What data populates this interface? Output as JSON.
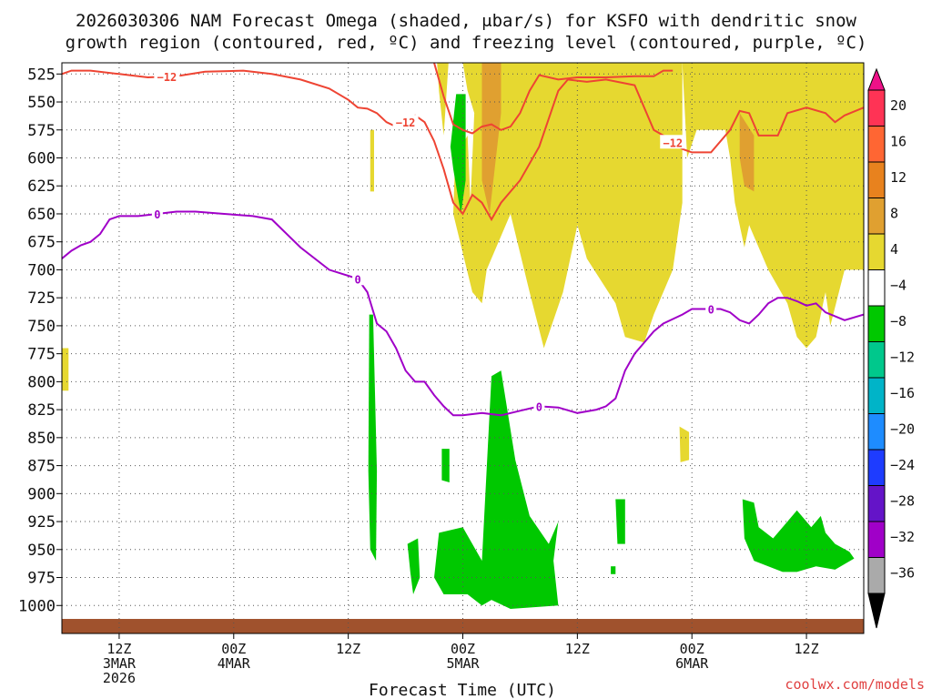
{
  "chart_data": {
    "type": "heatmap",
    "title_lines": [
      "2026030306 NAM Forecast Omega (shaded, μbar/s) for KSFO with dendritic snow",
      "growth region (contoured, red, ºC) and freezing level (contoured, purple, ºC)"
    ],
    "xlabel": "Forecast Time (UTC)",
    "credit": "coolwx.com/models",
    "x_range_hours": [
      0,
      84
    ],
    "x_ticks": [
      {
        "hour": 6,
        "lines": [
          "12Z",
          "3MAR",
          "2026"
        ]
      },
      {
        "hour": 18,
        "lines": [
          "00Z",
          "4MAR"
        ]
      },
      {
        "hour": 30,
        "lines": [
          "12Z"
        ]
      },
      {
        "hour": 42,
        "lines": [
          "00Z",
          "5MAR"
        ]
      },
      {
        "hour": 54,
        "lines": [
          "12Z"
        ]
      },
      {
        "hour": 66,
        "lines": [
          "00Z",
          "6MAR"
        ]
      },
      {
        "hour": 78,
        "lines": [
          "12Z"
        ]
      }
    ],
    "y_axis": "pressure_hPa",
    "y_range": [
      1025,
      515
    ],
    "y_ticks": [
      525,
      550,
      575,
      600,
      625,
      650,
      675,
      700,
      725,
      750,
      775,
      800,
      825,
      850,
      875,
      900,
      925,
      950,
      975,
      1000
    ],
    "colorbar": {
      "labels": [
        "20",
        "16",
        "12",
        "8",
        "4",
        "−4",
        "−8",
        "−12",
        "−16",
        "−20",
        "−24",
        "−28",
        "−32",
        "−36"
      ],
      "colors": [
        "#ff3355",
        "#ff6633",
        "#e8821e",
        "#e0a030",
        "#e6d830",
        "#ffffff",
        "#00c800",
        "#00c88c",
        "#00b4c8",
        "#1e8cff",
        "#1e3cff",
        "#6414c8",
        "#a000c8",
        "#aaaaaa"
      ],
      "top_arrow_color": "#ee1188",
      "bottom_arrow_color": "#000000"
    },
    "omega_regions": [
      {
        "color": "#e6d830",
        "points": [
          [
            39.3,
            515
          ],
          [
            40.5,
            515
          ],
          [
            40.0,
            580
          ],
          [
            39.5,
            540
          ]
        ]
      },
      {
        "color": "#e6d830",
        "points": [
          [
            42.0,
            515
          ],
          [
            65.0,
            515
          ],
          [
            65.0,
            640
          ],
          [
            64.0,
            700
          ],
          [
            62.0,
            740
          ],
          [
            61.0,
            765
          ],
          [
            59.0,
            760
          ],
          [
            58.0,
            730
          ],
          [
            55.0,
            690
          ],
          [
            54.0,
            660
          ],
          [
            52.5,
            720
          ],
          [
            50.5,
            770
          ],
          [
            49.0,
            720
          ],
          [
            47.0,
            650
          ],
          [
            44.5,
            700
          ],
          [
            44.0,
            730
          ],
          [
            43.0,
            720
          ],
          [
            41.0,
            650
          ],
          [
            41.2,
            600
          ],
          [
            42.5,
            580
          ],
          [
            42.8,
            640
          ],
          [
            43.2,
            560
          ],
          [
            42.5,
            540
          ]
        ]
      },
      {
        "color": "#e6d830",
        "points": [
          [
            65.0,
            515
          ],
          [
            84.0,
            515
          ],
          [
            84.0,
            700
          ],
          [
            82.0,
            700
          ],
          [
            80.5,
            750
          ],
          [
            80.0,
            720
          ],
          [
            79.0,
            760
          ],
          [
            78.0,
            770
          ],
          [
            77.0,
            760
          ],
          [
            76.0,
            730
          ],
          [
            74.0,
            700
          ],
          [
            72.0,
            660
          ],
          [
            71.5,
            680
          ],
          [
            70.5,
            640
          ],
          [
            70.0,
            600
          ],
          [
            69.5,
            575
          ],
          [
            66.5,
            575
          ],
          [
            65.5,
            600
          ]
        ]
      },
      {
        "color": "#e6d830",
        "points": [
          [
            -0.2,
            770
          ],
          [
            0.7,
            770
          ],
          [
            0.7,
            808
          ],
          [
            -0.2,
            808
          ]
        ]
      },
      {
        "color": "#e6d830",
        "points": [
          [
            64.7,
            840
          ],
          [
            65.7,
            845
          ],
          [
            65.7,
            870
          ],
          [
            64.8,
            872
          ]
        ]
      },
      {
        "color": "#e6d830",
        "points": [
          [
            32.3,
            575
          ],
          [
            32.7,
            575
          ],
          [
            32.7,
            630
          ],
          [
            32.3,
            630
          ]
        ]
      },
      {
        "color": "#e0a030",
        "points": [
          [
            44.0,
            515
          ],
          [
            46.0,
            515
          ],
          [
            46.0,
            560
          ],
          [
            44.8,
            650
          ],
          [
            44.0,
            620
          ]
        ]
      },
      {
        "color": "#e0a030",
        "points": [
          [
            71.0,
            560
          ],
          [
            72.5,
            580
          ],
          [
            72.5,
            630
          ],
          [
            71.5,
            625
          ],
          [
            71.0,
            600
          ]
        ]
      },
      {
        "color": "#00c800",
        "points": [
          [
            41.3,
            543
          ],
          [
            42.3,
            543
          ],
          [
            42.3,
            620
          ],
          [
            41.8,
            650
          ],
          [
            41.0,
            610
          ],
          [
            40.7,
            590
          ]
        ]
      },
      {
        "color": "#00c800",
        "points": [
          [
            32.2,
            740
          ],
          [
            32.6,
            740
          ],
          [
            33.0,
            880
          ],
          [
            32.9,
            960
          ],
          [
            32.3,
            950
          ],
          [
            32.1,
            880
          ]
        ]
      },
      {
        "color": "#00c800",
        "points": [
          [
            39.8,
            860
          ],
          [
            40.6,
            860
          ],
          [
            40.6,
            890
          ],
          [
            39.8,
            888
          ]
        ]
      },
      {
        "color": "#00c800",
        "points": [
          [
            42.0,
            930
          ],
          [
            44.0,
            960
          ],
          [
            45.0,
            795
          ],
          [
            46.0,
            790
          ],
          [
            47.5,
            870
          ],
          [
            49.0,
            920
          ],
          [
            51.0,
            945
          ],
          [
            52.0,
            925
          ],
          [
            51.5,
            960
          ],
          [
            52.0,
            1000
          ],
          [
            47.0,
            1003
          ],
          [
            45.0,
            995
          ],
          [
            44.0,
            1000
          ],
          [
            42.5,
            990
          ],
          [
            40.0,
            990
          ],
          [
            39.0,
            975
          ],
          [
            39.5,
            935
          ]
        ]
      },
      {
        "color": "#00c800",
        "points": [
          [
            36.2,
            945
          ],
          [
            37.3,
            940
          ],
          [
            37.5,
            975
          ],
          [
            36.8,
            990
          ],
          [
            36.5,
            970
          ]
        ]
      },
      {
        "color": "#00c800",
        "points": [
          [
            58.0,
            905
          ],
          [
            59.0,
            905
          ],
          [
            59.0,
            945
          ],
          [
            58.2,
            945
          ]
        ]
      },
      {
        "color": "#00c800",
        "points": [
          [
            57.5,
            965
          ],
          [
            58.0,
            965
          ],
          [
            58.0,
            972
          ],
          [
            57.5,
            972
          ]
        ]
      },
      {
        "color": "#00c800",
        "points": [
          [
            71.3,
            905
          ],
          [
            72.5,
            908
          ],
          [
            73.0,
            930
          ],
          [
            74.5,
            940
          ],
          [
            76.0,
            925
          ],
          [
            77.0,
            915
          ],
          [
            78.5,
            930
          ],
          [
            79.5,
            920
          ],
          [
            80.0,
            935
          ],
          [
            81.0,
            945
          ],
          [
            82.5,
            952
          ],
          [
            83.0,
            958
          ],
          [
            81.0,
            968
          ],
          [
            79.0,
            965
          ],
          [
            77.0,
            970
          ],
          [
            75.5,
            970
          ],
          [
            74.0,
            965
          ],
          [
            72.5,
            960
          ],
          [
            71.5,
            940
          ]
        ]
      }
    ],
    "dgz_contour": {
      "label": "−12",
      "color": "#ee4433",
      "upper_points": [
        [
          0,
          525
        ],
        [
          1,
          522
        ],
        [
          3,
          522
        ],
        [
          6,
          525
        ],
        [
          9,
          528
        ],
        [
          12,
          527
        ],
        [
          15,
          523
        ],
        [
          19,
          522
        ],
        [
          22,
          525
        ],
        [
          25,
          530
        ],
        [
          28,
          538
        ],
        [
          30,
          548
        ],
        [
          31,
          555
        ],
        [
          32,
          556
        ],
        [
          33,
          560
        ],
        [
          34,
          568
        ],
        [
          35,
          572
        ],
        [
          36,
          568
        ],
        [
          37,
          562
        ],
        [
          38,
          568
        ],
        [
          39,
          585
        ],
        [
          40,
          610
        ],
        [
          41,
          640
        ],
        [
          42,
          650
        ],
        [
          43,
          633
        ],
        [
          44,
          640
        ],
        [
          45,
          655
        ],
        [
          46,
          640
        ],
        [
          48,
          620
        ],
        [
          50,
          590
        ],
        [
          52,
          540
        ],
        [
          53,
          530
        ],
        [
          55,
          532
        ],
        [
          57,
          530
        ],
        [
          60,
          535
        ],
        [
          62,
          575
        ],
        [
          63,
          580
        ],
        [
          65,
          592
        ],
        [
          66,
          595
        ],
        [
          68,
          595
        ],
        [
          70,
          575
        ],
        [
          71,
          558
        ],
        [
          72,
          560
        ],
        [
          73,
          580
        ],
        [
          75,
          580
        ],
        [
          76,
          560
        ],
        [
          78,
          555
        ],
        [
          80,
          560
        ],
        [
          81,
          568
        ],
        [
          82,
          562
        ],
        [
          84,
          555
        ]
      ],
      "lower_points": [
        [
          39,
          515
        ],
        [
          40,
          545
        ],
        [
          41,
          570
        ],
        [
          42,
          575
        ],
        [
          43,
          578
        ],
        [
          44,
          572
        ],
        [
          45,
          570
        ],
        [
          46,
          575
        ],
        [
          47,
          572
        ],
        [
          48,
          560
        ],
        [
          49,
          540
        ],
        [
          50,
          526
        ],
        [
          52,
          530
        ],
        [
          54,
          528
        ],
        [
          57,
          528
        ],
        [
          60,
          527
        ],
        [
          62,
          527
        ],
        [
          63,
          522
        ],
        [
          64,
          522
        ]
      ],
      "label_hours": [
        11,
        36,
        64
      ]
    },
    "freezing_level": {
      "label": "0",
      "color": "#a000c8",
      "points": [
        [
          0,
          690
        ],
        [
          1,
          683
        ],
        [
          2,
          678
        ],
        [
          3,
          675
        ],
        [
          4,
          668
        ],
        [
          5,
          655
        ],
        [
          6,
          652
        ],
        [
          8,
          652
        ],
        [
          10,
          650
        ],
        [
          12,
          648
        ],
        [
          14,
          648
        ],
        [
          17,
          650
        ],
        [
          20,
          652
        ],
        [
          22,
          655
        ],
        [
          25,
          680
        ],
        [
          28,
          700
        ],
        [
          31,
          708
        ],
        [
          32,
          720
        ],
        [
          33,
          748
        ],
        [
          34,
          755
        ],
        [
          35,
          770
        ],
        [
          36,
          790
        ],
        [
          37,
          800
        ],
        [
          38,
          800
        ],
        [
          39,
          812
        ],
        [
          40,
          822
        ],
        [
          41,
          830
        ],
        [
          42,
          830
        ],
        [
          44,
          828
        ],
        [
          46,
          830
        ],
        [
          48,
          826
        ],
        [
          50,
          822
        ],
        [
          52,
          823
        ],
        [
          54,
          828
        ],
        [
          56,
          825
        ],
        [
          57,
          822
        ],
        [
          58,
          815
        ],
        [
          59,
          790
        ],
        [
          60,
          775
        ],
        [
          61,
          765
        ],
        [
          62,
          755
        ],
        [
          63,
          748
        ],
        [
          65,
          740
        ],
        [
          66,
          735
        ],
        [
          69,
          735
        ],
        [
          70,
          738
        ],
        [
          71,
          745
        ],
        [
          72,
          748
        ],
        [
          73,
          740
        ],
        [
          74,
          730
        ],
        [
          75,
          725
        ],
        [
          76,
          725
        ],
        [
          77,
          728
        ],
        [
          78,
          732
        ],
        [
          79,
          730
        ],
        [
          80,
          738
        ],
        [
          82,
          745
        ],
        [
          84,
          740
        ]
      ],
      "label_hours": [
        10,
        31,
        50,
        68
      ]
    },
    "terrain": {
      "color": "#a0522d",
      "top_pressure": 1012
    }
  }
}
